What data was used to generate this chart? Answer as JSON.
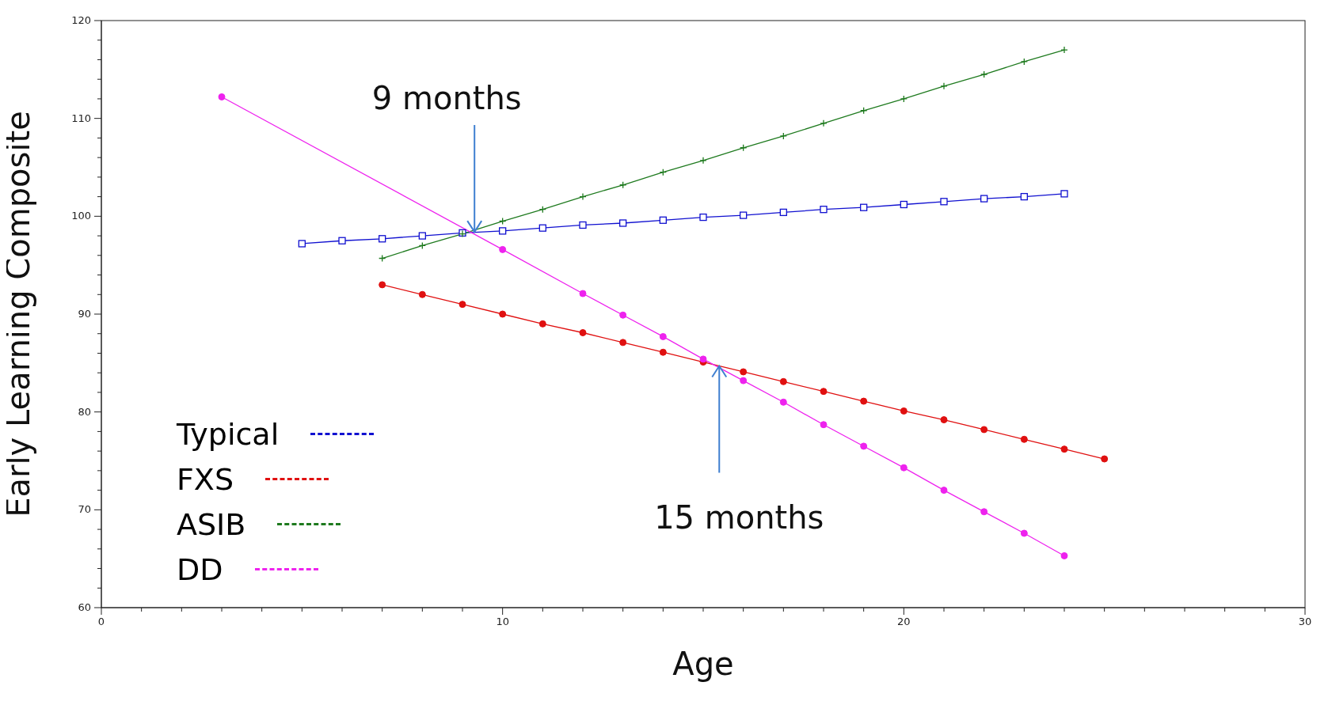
{
  "chart_data": {
    "type": "line",
    "xlabel": "Age",
    "ylabel": "Early Learning Composite",
    "xlim": [
      0,
      30
    ],
    "ylim": [
      60,
      120
    ],
    "xticks": [
      0,
      {
        "value": 1,
        "label": null
      },
      {
        "value": 2,
        "label": null
      },
      {
        "value": 3,
        "label": null
      },
      {
        "value": 4,
        "label": null
      },
      {
        "value": 5,
        "label": null
      },
      {
        "value": 6,
        "label": null
      },
      {
        "value": 7,
        "label": null
      },
      {
        "value": 8,
        "label": null
      },
      {
        "value": 9,
        "label": null
      },
      10,
      {
        "value": 11,
        "label": null
      },
      {
        "value": 12,
        "label": null
      },
      {
        "value": 13,
        "label": null
      },
      {
        "value": 14,
        "label": null
      },
      {
        "value": 15,
        "label": null
      },
      {
        "value": 16,
        "label": null
      },
      {
        "value": 17,
        "label": null
      },
      {
        "value": 18,
        "label": null
      },
      {
        "value": 19,
        "label": null
      },
      20,
      {
        "value": 21,
        "label": null
      },
      {
        "value": 22,
        "label": null
      },
      {
        "value": 23,
        "label": null
      },
      {
        "value": 24,
        "label": null
      },
      {
        "value": 25,
        "label": null
      },
      {
        "value": 26,
        "label": null
      },
      {
        "value": 27,
        "label": null
      },
      {
        "value": 28,
        "label": null
      },
      {
        "value": 29,
        "label": null
      },
      30
    ],
    "yticks": [
      60,
      {
        "value": 62,
        "label": null
      },
      {
        "value": 64,
        "label": null
      },
      {
        "value": 66,
        "label": null
      },
      {
        "value": 68,
        "label": null
      },
      70,
      {
        "value": 72,
        "label": null
      },
      {
        "value": 74,
        "label": null
      },
      {
        "value": 76,
        "label": null
      },
      {
        "value": 78,
        "label": null
      },
      80,
      {
        "value": 82,
        "label": null
      },
      {
        "value": 84,
        "label": null
      },
      {
        "value": 86,
        "label": null
      },
      {
        "value": 88,
        "label": null
      },
      90,
      {
        "value": 92,
        "label": null
      },
      {
        "value": 94,
        "label": null
      },
      {
        "value": 96,
        "label": null
      },
      {
        "value": 98,
        "label": null
      },
      100,
      {
        "value": 102,
        "label": null
      },
      {
        "value": 104,
        "label": null
      },
      {
        "value": 106,
        "label": null
      },
      {
        "value": 108,
        "label": null
      },
      110,
      {
        "value": 112,
        "label": null
      },
      {
        "value": 114,
        "label": null
      },
      {
        "value": 116,
        "label": null
      },
      {
        "value": 118,
        "label": null
      },
      120
    ],
    "grid": false,
    "legend": "bottom left",
    "line_style": "solid",
    "series": [
      {
        "name": "Typical",
        "color": "#1010d0",
        "marker": "square",
        "x": [
          5,
          6,
          7,
          8,
          9,
          10,
          11,
          12,
          13,
          14,
          15,
          16,
          17,
          18,
          19,
          20,
          21,
          22,
          23,
          24
        ],
        "values": [
          97.2,
          97.5,
          97.7,
          98.0,
          98.3,
          98.5,
          98.8,
          99.1,
          99.3,
          99.6,
          99.9,
          100.1,
          100.4,
          100.7,
          100.9,
          101.2,
          101.5,
          101.8,
          102.0,
          102.3
        ]
      },
      {
        "name": "FXS",
        "color": "#e01010",
        "marker": "circle",
        "x": [
          7,
          8,
          9,
          10,
          11,
          12,
          13,
          14,
          15,
          16,
          17,
          18,
          19,
          20,
          21,
          22,
          23,
          24,
          25
        ],
        "values": [
          93.0,
          92.0,
          91.0,
          90.0,
          89.0,
          88.1,
          87.1,
          86.1,
          85.1,
          84.1,
          83.1,
          82.1,
          81.1,
          80.1,
          79.2,
          78.2,
          77.2,
          76.2,
          75.2
        ]
      },
      {
        "name": "ASIB",
        "color": "#1e7a1e",
        "marker": "cross",
        "x": [
          7,
          8,
          9,
          10,
          11,
          12,
          13,
          14,
          15,
          16,
          17,
          18,
          19,
          20,
          21,
          22,
          23,
          24
        ],
        "values": [
          95.7,
          97.0,
          98.2,
          99.5,
          100.7,
          102.0,
          103.2,
          104.5,
          105.7,
          107.0,
          108.2,
          109.5,
          110.8,
          112.0,
          113.3,
          114.5,
          115.8,
          117.0
        ]
      },
      {
        "name": "DD",
        "color": "#ee22ee",
        "marker": "circle",
        "x": [
          3,
          10,
          12,
          13,
          14,
          15,
          16,
          17,
          18,
          19,
          20,
          21,
          22,
          23,
          24
        ],
        "values": [
          112.2,
          96.6,
          92.1,
          89.9,
          87.7,
          85.4,
          83.2,
          81.0,
          78.7,
          76.5,
          74.3,
          72.0,
          69.8,
          67.6,
          65.3
        ]
      }
    ],
    "annotations": [
      {
        "text": "9 months",
        "x": 9.3,
        "y": 98.4
      },
      {
        "text": "15 months",
        "x": 15.4,
        "y": 84.7
      }
    ]
  }
}
